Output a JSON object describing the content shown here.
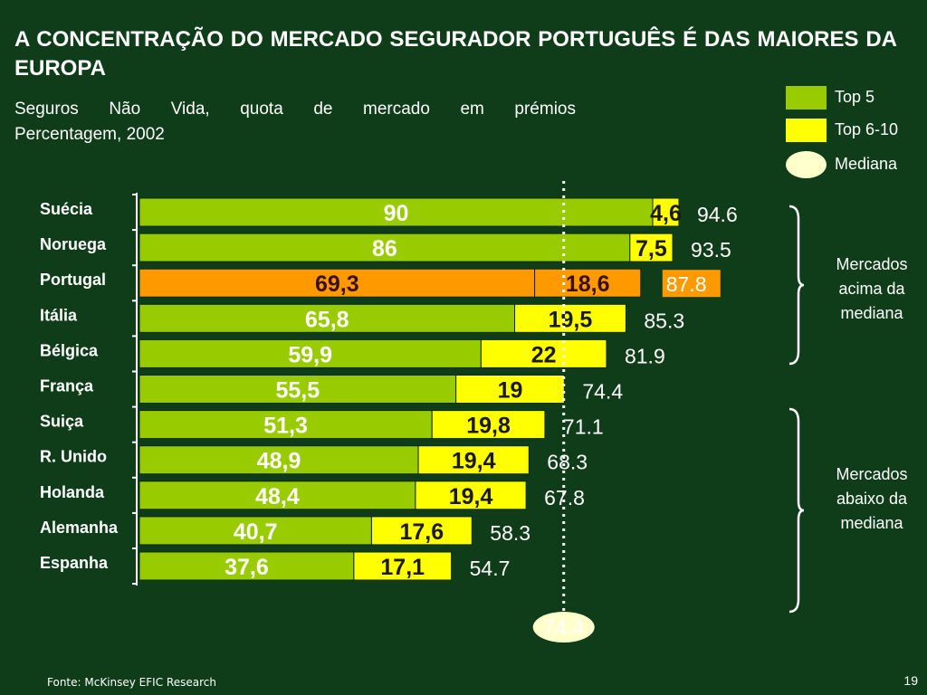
{
  "title": "A CONCENTRAÇÃO DO MERCADO SEGURADOR PORTUGUÊS É DAS MAIORES DA EUROPA",
  "subtitle_line1": "Seguros Não Vida, quota de mercado em prémios",
  "subtitle_line2": "Percentagem, 2002",
  "legend": {
    "top5": "Top 5",
    "top610": "Top 6-10",
    "median": "Mediana"
  },
  "colors": {
    "top5": "#99cc00",
    "top610": "#ffff00",
    "highlight": "#ff9900",
    "median_bubble": "#ffffcc",
    "background": "#0f3d1a"
  },
  "chart_data": {
    "type": "bar",
    "orientation": "horizontal",
    "stacked": true,
    "categories": [
      "Suécia",
      "Noruega",
      "Portugal",
      "Itália",
      "Bélgica",
      "França",
      "Suiça",
      "R. Unido",
      "Holanda",
      "Alemanha",
      "Espanha"
    ],
    "series": [
      {
        "name": "Top 5",
        "values": [
          90,
          86,
          69.3,
          65.8,
          59.9,
          55.5,
          51.3,
          48.9,
          48.4,
          40.7,
          37.6
        ],
        "labels": [
          "90",
          "86",
          "69,3",
          "65,8",
          "59,9",
          "55,5",
          "51,3",
          "48,9",
          "48,4",
          "40,7",
          "37,6"
        ]
      },
      {
        "name": "Top 6-10",
        "values": [
          4.6,
          7.5,
          18.6,
          19.5,
          22,
          19,
          19.8,
          19.4,
          19.4,
          17.6,
          17.1
        ],
        "labels": [
          "4,6",
          "7,5",
          "18,6",
          "19,5",
          "22",
          "19",
          "19,8",
          "19,4",
          "19,4",
          "17,6",
          "17,1"
        ]
      }
    ],
    "totals": [
      94.6,
      93.5,
      87.8,
      85.3,
      81.9,
      74.4,
      71.1,
      68.3,
      67.8,
      58.3,
      54.7
    ],
    "totals_labels": [
      "94.6",
      "93.5",
      "87.8",
      "85.3",
      "81.9",
      "74.4",
      "71.1",
      "68.3",
      "67.8",
      "58.3",
      "54.7"
    ],
    "highlight_category": "Portugal",
    "median": 74.4,
    "median_label": "74.4",
    "groups": [
      {
        "label_lines": [
          "Mercados",
          "acima da",
          "mediana"
        ]
      },
      {
        "label_lines": [
          "Mercados",
          "abaixo da",
          "mediana"
        ]
      }
    ]
  },
  "footer": "Fonte: McKinsey EFIC Research",
  "page_number": "19"
}
